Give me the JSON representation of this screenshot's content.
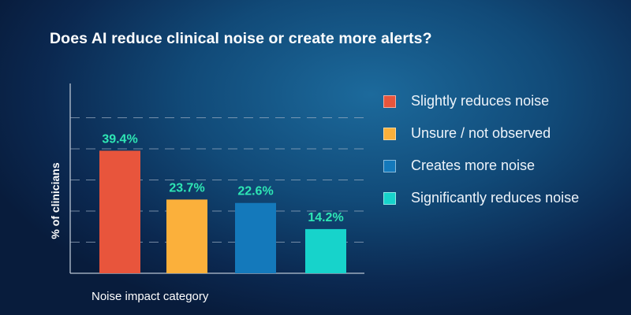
{
  "chart_data": {
    "type": "bar",
    "title": "Does AI reduce clinical noise or create more alerts?",
    "xlabel": "Noise impact category",
    "ylabel": "% of clinicians",
    "categories": [
      "Slightly reduces noise",
      "Unsure / not observed",
      "Creates more noise",
      "Significantly reduces noise"
    ],
    "values": [
      39.4,
      23.7,
      22.6,
      14.2
    ],
    "data_labels": [
      "39.4%",
      "23.7%",
      "22.6%",
      "14.2%"
    ],
    "colors": [
      "#e8553c",
      "#fbb03b",
      "#1479bb",
      "#17d3cb"
    ],
    "label_color": "#2ee6b4",
    "ylim": [
      0,
      60
    ],
    "gridlines": [
      10,
      20,
      30,
      40,
      50
    ],
    "grid": true,
    "legend_position": "right"
  }
}
